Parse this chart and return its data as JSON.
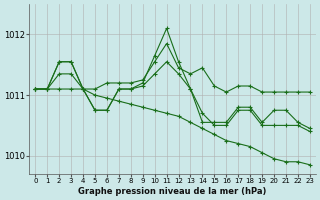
{
  "xlabel": "Graphe pression niveau de la mer (hPa)",
  "background_color": "#cce8e8",
  "grid_color": "#b0b0b0",
  "line_color": "#1a6e1a",
  "xlim": [
    -0.5,
    23.5
  ],
  "ylim": [
    1009.7,
    1012.5
  ],
  "yticks": [
    1010,
    1011,
    1012
  ],
  "xticks": [
    0,
    1,
    2,
    3,
    4,
    5,
    6,
    7,
    8,
    9,
    10,
    11,
    12,
    13,
    14,
    15,
    16,
    17,
    18,
    19,
    20,
    21,
    22,
    23
  ],
  "series": [
    [
      1011.1,
      1011.1,
      1011.55,
      1011.55,
      1011.1,
      1011.1,
      1011.2,
      1011.2,
      1011.2,
      1011.25,
      1011.55,
      1011.85,
      1011.45,
      1011.35,
      1011.45,
      1011.15,
      1011.05,
      1011.15,
      1011.15,
      1011.05,
      1011.05,
      1011.05,
      1011.05,
      1011.05
    ],
    [
      1011.1,
      1011.1,
      1011.55,
      1011.55,
      1011.1,
      1010.75,
      1010.75,
      1011.1,
      1011.1,
      1011.2,
      1011.65,
      1012.1,
      1011.55,
      1011.1,
      1010.55,
      1010.55,
      1010.55,
      1010.8,
      1010.8,
      1010.55,
      1010.75,
      1010.75,
      1010.55,
      1010.45
    ],
    [
      1011.1,
      1011.1,
      1011.35,
      1011.35,
      1011.1,
      1010.75,
      1010.75,
      1011.1,
      1011.1,
      1011.15,
      1011.35,
      1011.55,
      1011.35,
      1011.1,
      1010.7,
      1010.5,
      1010.5,
      1010.75,
      1010.75,
      1010.5,
      1010.5,
      1010.5,
      1010.5,
      1010.4
    ],
    [
      1011.1,
      1011.1,
      1011.1,
      1011.1,
      1011.1,
      1011.0,
      1010.95,
      1010.9,
      1010.85,
      1010.8,
      1010.75,
      1010.7,
      1010.65,
      1010.55,
      1010.45,
      1010.35,
      1010.25,
      1010.2,
      1010.15,
      1010.05,
      1009.95,
      1009.9,
      1009.9,
      1009.85
    ]
  ]
}
